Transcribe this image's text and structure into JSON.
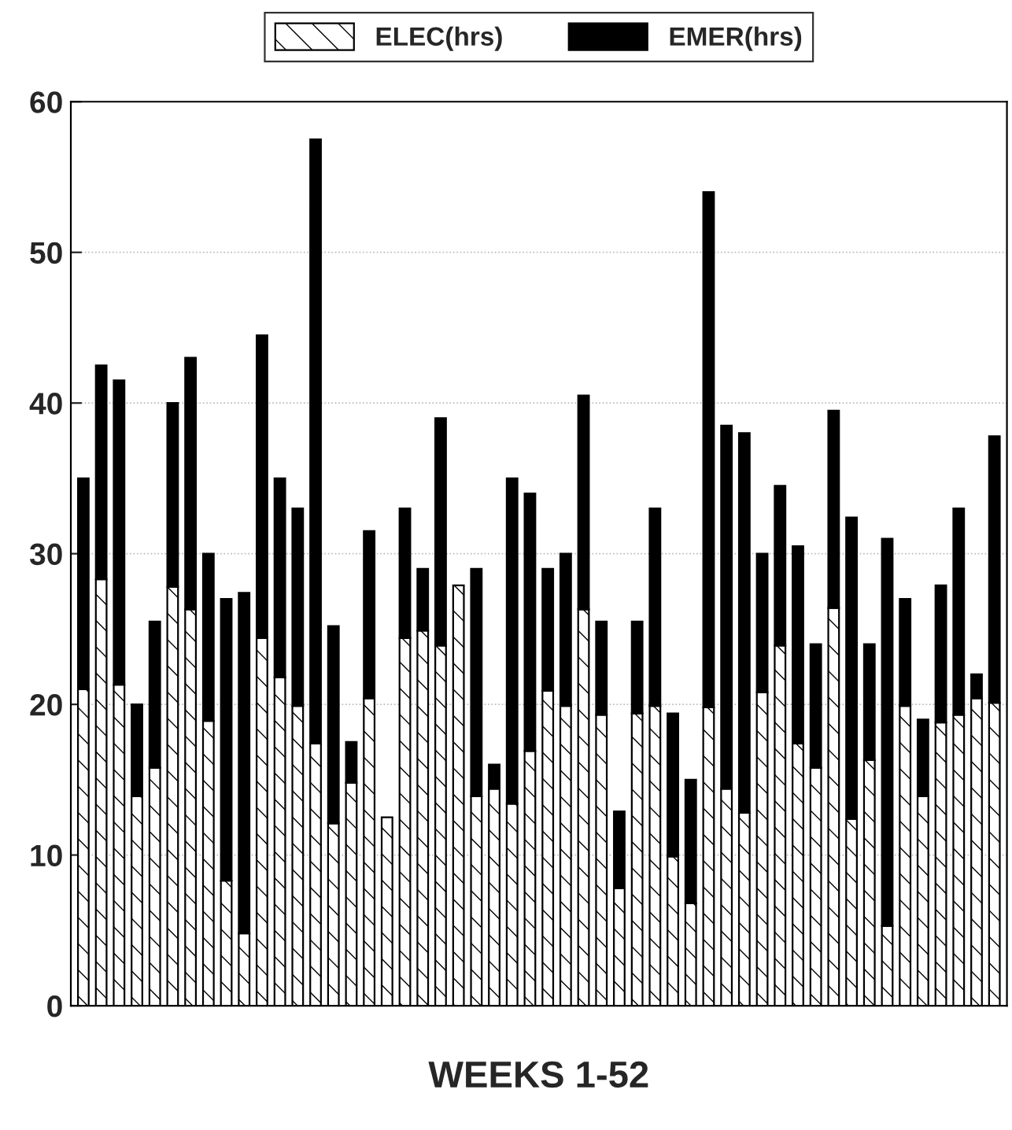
{
  "chart_data": {
    "type": "bar",
    "stacked": true,
    "xlabel": "WEEKS 1-52",
    "categories": [
      null,
      null,
      null,
      null,
      null,
      null,
      null,
      null,
      null,
      null,
      null,
      null,
      null,
      null,
      null,
      null,
      null,
      null,
      null,
      null,
      null,
      null,
      null,
      null,
      null,
      null,
      null,
      null,
      null,
      null,
      null,
      null,
      null,
      null,
      null,
      null,
      null,
      null,
      null,
      null,
      null,
      null,
      null,
      null,
      null,
      null,
      null,
      null,
      null,
      null,
      null,
      null
    ],
    "series": [
      {
        "name": "ELEC(hrs)",
        "color": "#ffffff",
        "values": [
          21,
          28.3,
          21.3,
          13.9,
          15.8,
          27.8,
          26.3,
          18.9,
          8.3,
          4.8,
          24.4,
          21.8,
          19.9,
          17.4,
          12.1,
          14.8,
          20.4,
          12.5,
          24.4,
          24.9,
          23.9,
          27.9,
          13.9,
          14.4,
          13.4,
          16.9,
          20.9,
          19.9,
          26.3,
          19.3,
          7.8,
          19.4,
          19.9,
          9.9,
          6.8,
          19.8,
          14.4,
          12.8,
          20.8,
          23.9,
          17.4,
          15.8,
          26.4,
          12.4,
          16.3,
          5.3,
          19.9,
          13.9,
          18.8,
          19.3,
          20.4,
          20.1
        ]
      },
      {
        "name": "EMER(hrs)",
        "color": "#000000",
        "values": [
          14,
          14.2,
          20.2,
          6.1,
          9.7,
          12.2,
          16.7,
          11.1,
          18.7,
          22.6,
          20.1,
          13.2,
          13.1,
          40.1,
          13.1,
          2.7,
          11.1,
          null,
          8.6,
          4.1,
          15.1,
          null,
          15.1,
          1.6,
          21.6,
          17.1,
          8.1,
          10.1,
          14.2,
          6.2,
          5.1,
          6.1,
          13.1,
          9.5,
          8.2,
          34.2,
          24.1,
          25.2,
          9.2,
          10.6,
          13.1,
          8.2,
          13.1,
          20,
          7.7,
          25.7,
          7.1,
          5.1,
          9.1,
          13.7,
          1.6,
          17.7
        ]
      }
    ],
    "ylim": [
      0,
      60
    ],
    "yticks": [
      0,
      10,
      20,
      30,
      40,
      50,
      60
    ],
    "grid": "y",
    "legend": "top",
    "tick_labels": "y"
  }
}
